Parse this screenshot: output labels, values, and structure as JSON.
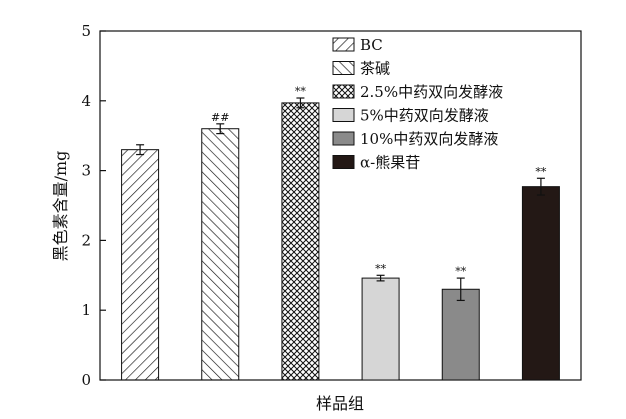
{
  "chart_data": {
    "type": "bar",
    "xlabel": "样品组",
    "ylabel": "黑色素含量/mg",
    "ylim": [
      0,
      5
    ],
    "yticks": [
      "0",
      "1",
      "2",
      "3",
      "4",
      "5"
    ],
    "grid": false,
    "legend_position": "top-right",
    "categories": [
      "BC",
      "茶碱",
      "2.5%中药双向发酵液",
      "5%中药双向发酵液",
      "10%中药双向发酵液",
      "α-熊果苷"
    ],
    "values": [
      3.3,
      3.6,
      3.97,
      1.46,
      1.3,
      2.77
    ],
    "errors": [
      0.07,
      0.07,
      0.07,
      0.04,
      0.16,
      0.12
    ],
    "annotations": [
      "",
      "##",
      "**",
      "**",
      "**",
      "**"
    ],
    "fills": [
      {
        "pattern": "diag-right",
        "color": "#ffffff"
      },
      {
        "pattern": "diag-left",
        "color": "#ffffff"
      },
      {
        "pattern": "crosshatch",
        "color": "#ffffff"
      },
      {
        "pattern": "solid",
        "color": "#d6d6d6"
      },
      {
        "pattern": "solid",
        "color": "#8a8a8a"
      },
      {
        "pattern": "solid",
        "color": "#231815"
      }
    ]
  }
}
